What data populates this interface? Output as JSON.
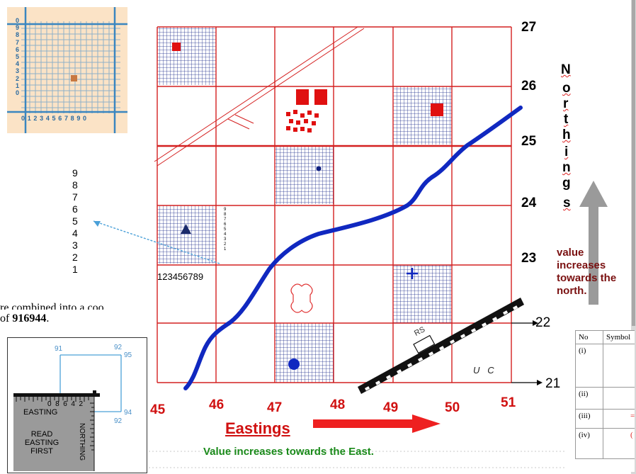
{
  "northings": [
    "27",
    "26",
    "25",
    "24",
    "23",
    "22",
    "21"
  ],
  "eastings": [
    "45",
    "46",
    "47",
    "48",
    "49",
    "50",
    "51"
  ],
  "north_letters": [
    "N",
    "o",
    "r",
    "t",
    "h",
    "i",
    "n",
    "g",
    "s"
  ],
  "north_note": [
    "value",
    "increases",
    "towards the",
    "north."
  ],
  "eastings_title": "Eastings",
  "east_note": "Value increases towards the East.",
  "mini_easting_row": "123456789",
  "mini_northing_col": [
    "9",
    "8",
    "7",
    "6",
    "5",
    "4",
    "3",
    "2",
    "1"
  ],
  "side_scale": [
    "9",
    "8",
    "7",
    "6",
    "5",
    "4",
    "3",
    "2",
    "1"
  ],
  "road_label": "RS",
  "letters_vc": "U   C",
  "cut_text_1": "re combined into a coo",
  "cut_text_2_prefix": "of ",
  "cut_text_2_bold": "916944",
  "cut_text_2_suffix": ".",
  "inset_top": {
    "y_labels": [
      "0",
      "9",
      "8",
      "7",
      "6",
      "5",
      "4",
      "3",
      "2",
      "1",
      "0"
    ],
    "x_labels": "0 1 2 3 4 5 6 7 8 9 0"
  },
  "inset_bottom": {
    "top_left": "91",
    "top_right_1": "92",
    "top_right_2": "95",
    "right_mid": "94",
    "right_low": "92",
    "ruler_numbers": "0  8  6  4  2",
    "easting": "EASTING",
    "northing": "NORTHING",
    "read_1": "READ",
    "read_2": "EASTING",
    "read_3": "FIRST"
  },
  "symbol_table": {
    "headers": [
      "No",
      "Symbol"
    ],
    "rows": [
      "(i)",
      "(ii)",
      "(iii)",
      "(iv)"
    ]
  },
  "colors": {
    "grid": "#d42020",
    "hatch": "#1a2a8a",
    "river": "#1028c0",
    "red": "#e01010"
  }
}
